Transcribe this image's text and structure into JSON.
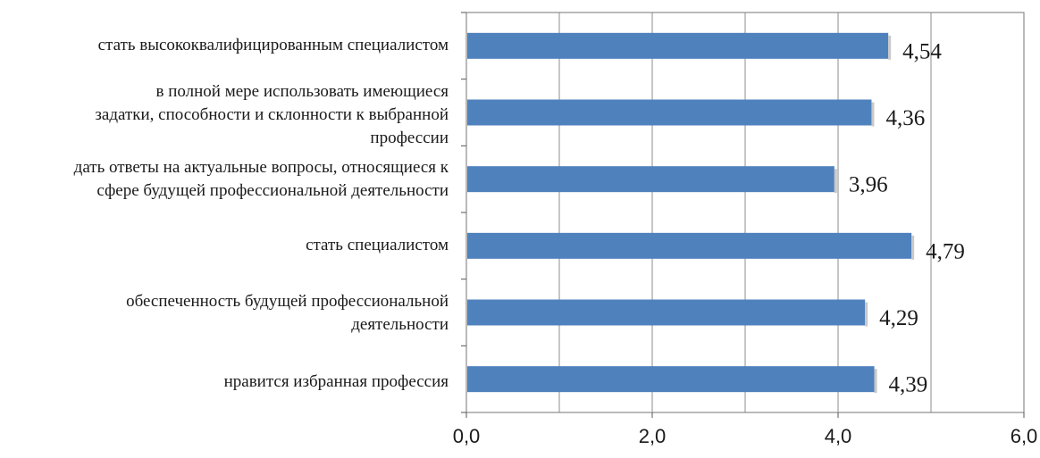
{
  "chart_data": {
    "type": "bar",
    "orientation": "horizontal",
    "categories": [
      "стать высококвалифицированным специалистом",
      "в полной мере использовать имеющиеся\nзадатки, способности и склонности к выбранной\nпрофессии",
      "дать ответы на актуальные вопросы, относящиеся к\nсфере будущей профессиональной деятельности",
      "стать специалистом",
      "обеспеченность будущей профессиональной\nдеятельности",
      "нравится избранная профессия"
    ],
    "values": [
      4.54,
      4.36,
      3.96,
      4.79,
      4.29,
      4.39
    ],
    "value_labels": [
      "4,54",
      "4,36",
      "3,96",
      "4,79",
      "4,29",
      "4,39"
    ],
    "xlim": [
      0,
      6
    ],
    "xticks": [
      0,
      2,
      4,
      6
    ],
    "xtick_labels": [
      "0,0",
      "2,0",
      "4,0",
      "6,0"
    ],
    "vertical_gridlines": [
      1,
      2,
      3,
      4,
      5
    ],
    "grid": true,
    "legend": "none",
    "bar_color": "#4f81bd",
    "title": "",
    "xlabel": "",
    "ylabel": ""
  }
}
